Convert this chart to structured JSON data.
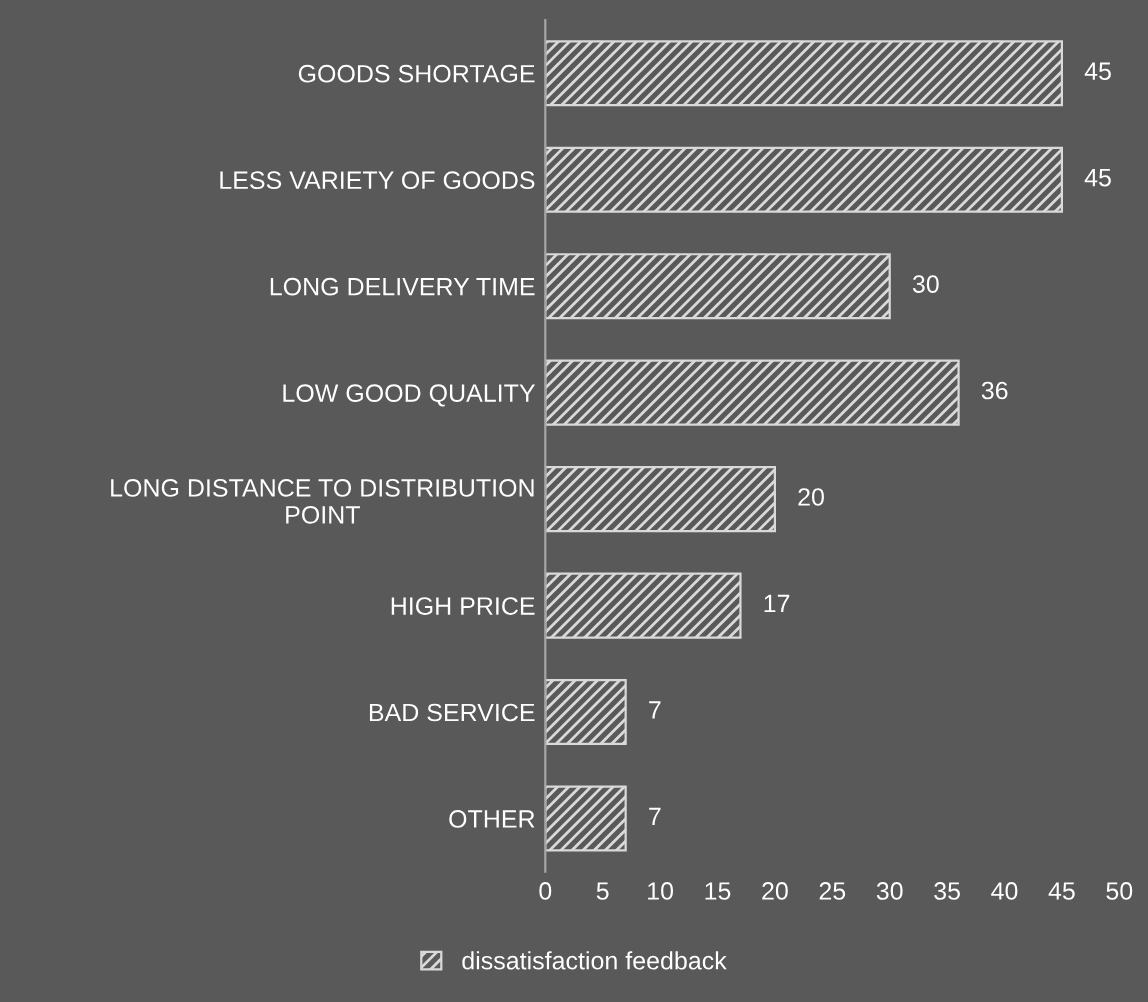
{
  "chart_data": {
    "type": "bar",
    "orientation": "horizontal",
    "categories": [
      "GOODS SHORTAGE",
      "LESS VARIETY OF GOODS",
      "LONG DELIVERY TIME",
      "LOW GOOD QUALITY",
      "LONG DISTANCE TO DISTRIBUTION POINT",
      "HIGH PRICE",
      "BAD SERVICE",
      "OTHER"
    ],
    "series": [
      {
        "name": "dissatisfaction feedback",
        "color": "#d9d9d9",
        "values": [
          45,
          45,
          30,
          36,
          20,
          17,
          7,
          7
        ]
      }
    ],
    "xlim": [
      0,
      50
    ],
    "xticks": [
      0,
      5,
      10,
      15,
      20,
      25,
      30,
      35,
      40,
      45,
      50
    ],
    "data_labels": true,
    "legend": "bottom",
    "grid": false
  }
}
